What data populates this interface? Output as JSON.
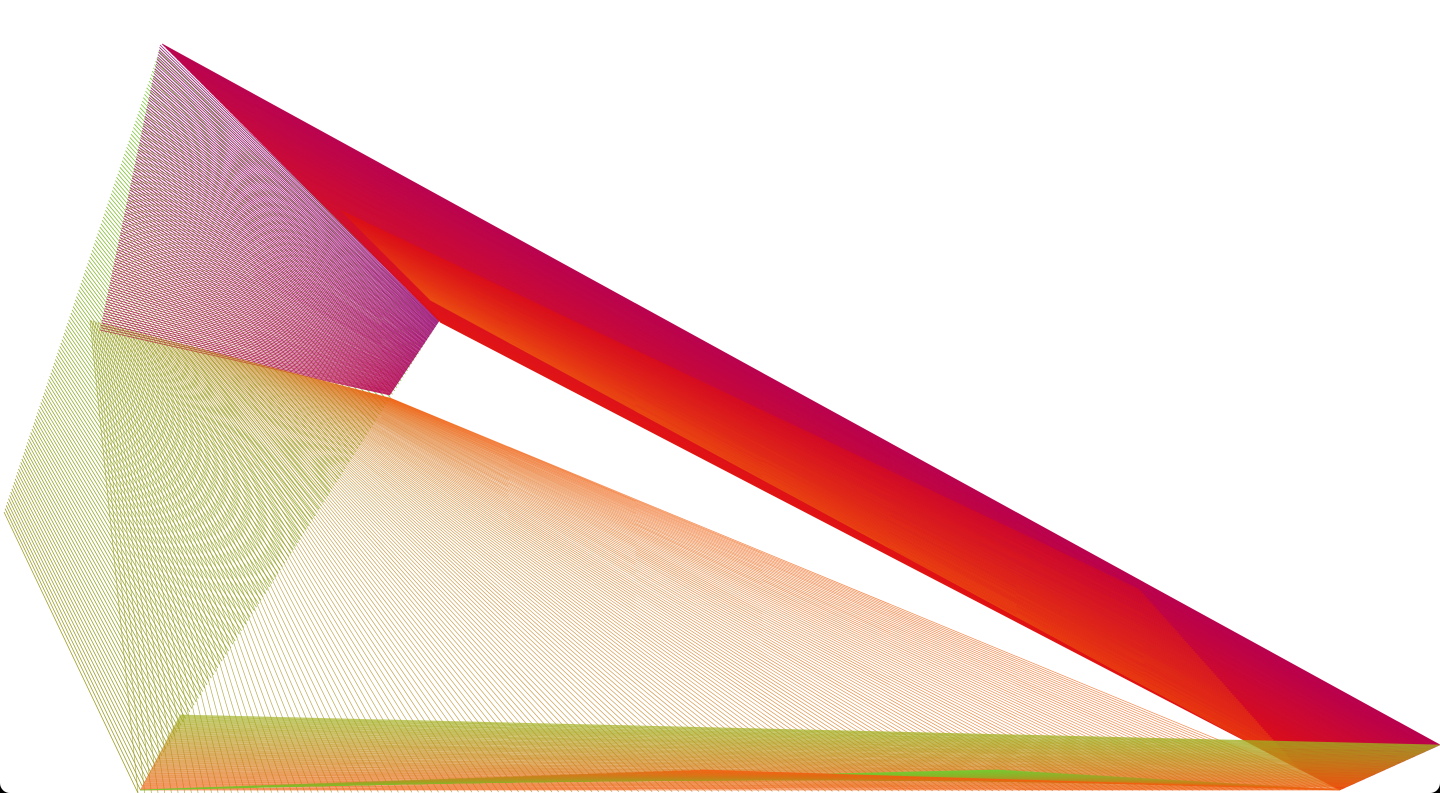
{
  "artwork": {
    "kind": "generative line art",
    "background_color": "#ffffff",
    "frame_color": "#000000",
    "palette": {
      "magenta": "#b8004e",
      "purple": "#9a0a7a",
      "red": "#e01010",
      "orange": "#f06010",
      "yellow_green": "#a0b020",
      "olive": "#9a9a20",
      "green": "#70cc30"
    }
  }
}
